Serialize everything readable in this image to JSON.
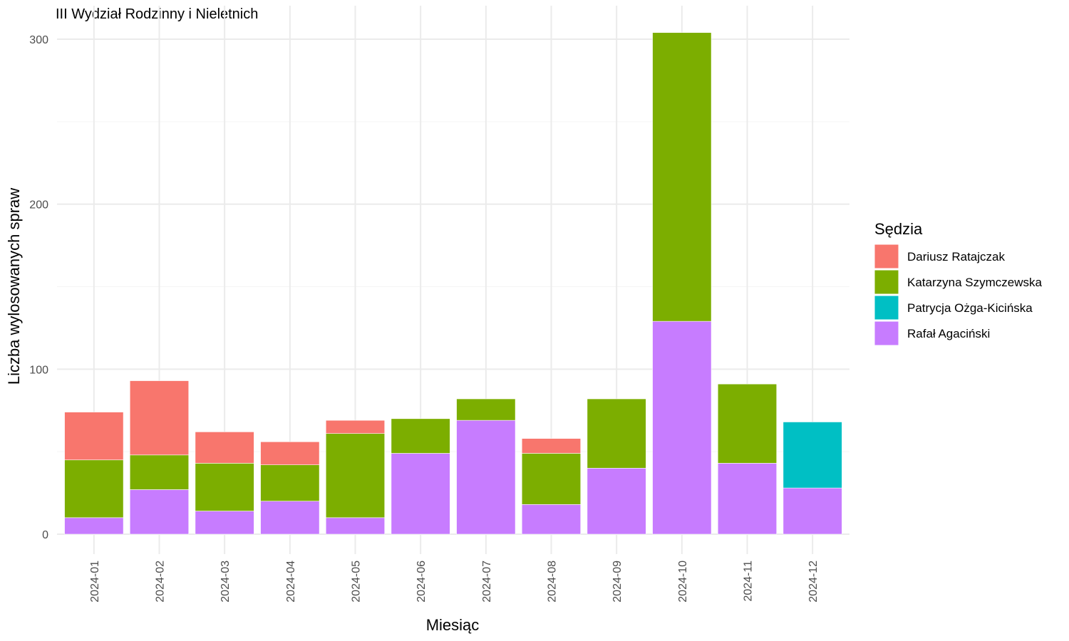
{
  "chart_data": {
    "type": "bar",
    "stacked": true,
    "title": "III Wydział Rodzinny i Nieletnich",
    "xlabel": "Miesiąc",
    "ylabel": "Liczba wylosowanych spraw",
    "ylim": [
      -12,
      308
    ],
    "yticks": [
      0,
      100,
      200,
      300
    ],
    "grid": true,
    "legend": {
      "title": "Sędzia",
      "position": "right"
    },
    "categories": [
      "2024-01",
      "2024-02",
      "2024-03",
      "2024-04",
      "2024-05",
      "2024-06",
      "2024-07",
      "2024-08",
      "2024-09",
      "2024-10",
      "2024-11",
      "2024-12"
    ],
    "series": [
      {
        "name": "Rafał Agaciński",
        "color": "#C77CFF",
        "values": [
          10,
          27,
          14,
          20,
          10,
          49,
          69,
          18,
          40,
          129,
          43,
          28
        ]
      },
      {
        "name": "Patrycja Ożga-Kicińska",
        "color": "#00BFC4",
        "values": [
          0,
          0,
          0,
          0,
          0,
          0,
          0,
          0,
          0,
          0,
          0,
          40
        ]
      },
      {
        "name": "Katarzyna Szymczewska",
        "color": "#7CAE00",
        "values": [
          35,
          21,
          29,
          22,
          51,
          21,
          13,
          31,
          42,
          175,
          48,
          0
        ]
      },
      {
        "name": "Dariusz Ratajczak",
        "color": "#F8766D",
        "values": [
          29,
          45,
          19,
          14,
          8,
          0,
          0,
          9,
          0,
          0,
          0,
          0
        ]
      }
    ],
    "legend_order": [
      "Dariusz Ratajczak",
      "Katarzyna Szymczewska",
      "Patrycja Ożga-Kicińska",
      "Rafał Agaciński"
    ]
  }
}
